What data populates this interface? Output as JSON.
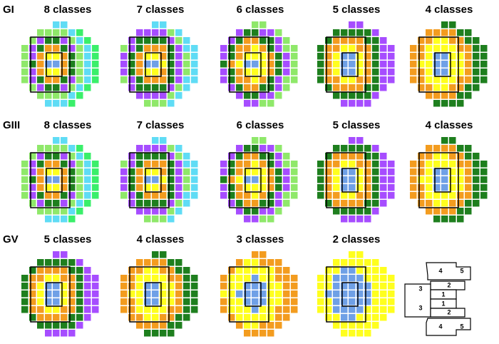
{
  "row_labels": [
    "GI",
    "GIII",
    "GV"
  ],
  "panels": [
    [
      "8 classes",
      "7 classes",
      "6 classes",
      "5 classes",
      "4 classes"
    ],
    [
      "8 classes",
      "7 classes",
      "6 classes",
      "5 classes",
      "4 classes"
    ],
    [
      "5 classes",
      "4 classes",
      "3 classes",
      "2 classes"
    ]
  ],
  "legend_labels": [
    "4",
    "5",
    "2",
    "3",
    "1",
    "1",
    "3",
    "2",
    "4",
    "5"
  ]
}
